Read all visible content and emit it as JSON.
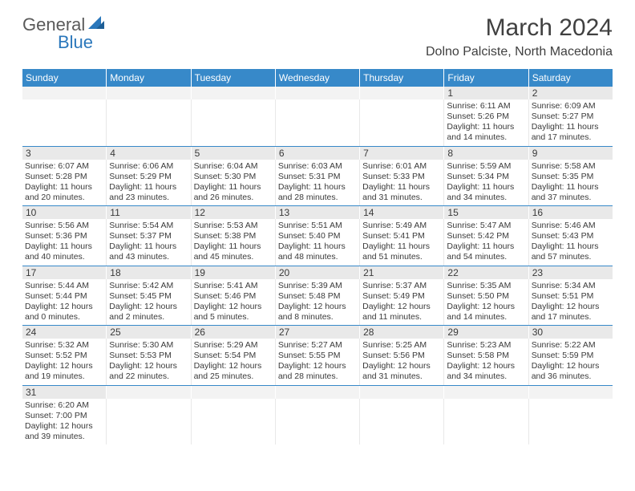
{
  "brand": {
    "g": "General",
    "b": "Blue"
  },
  "title": "March 2024",
  "location": "Dolno Palciste, North Macedonia",
  "colors": {
    "headerBar": "#3789c9",
    "bandBg": "#e9e9e9",
    "emptyBg": "#f3f3f3",
    "text": "#3a3a3a",
    "rowBorder": "#3789c9"
  },
  "dayNames": [
    "Sunday",
    "Monday",
    "Tuesday",
    "Wednesday",
    "Thursday",
    "Friday",
    "Saturday"
  ],
  "weeks": [
    [
      null,
      null,
      null,
      null,
      null,
      {
        "d": "1",
        "sr": "Sunrise: 6:11 AM",
        "ss": "Sunset: 5:26 PM",
        "dl1": "Daylight: 11 hours",
        "dl2": "and 14 minutes."
      },
      {
        "d": "2",
        "sr": "Sunrise: 6:09 AM",
        "ss": "Sunset: 5:27 PM",
        "dl1": "Daylight: 11 hours",
        "dl2": "and 17 minutes."
      }
    ],
    [
      {
        "d": "3",
        "sr": "Sunrise: 6:07 AM",
        "ss": "Sunset: 5:28 PM",
        "dl1": "Daylight: 11 hours",
        "dl2": "and 20 minutes."
      },
      {
        "d": "4",
        "sr": "Sunrise: 6:06 AM",
        "ss": "Sunset: 5:29 PM",
        "dl1": "Daylight: 11 hours",
        "dl2": "and 23 minutes."
      },
      {
        "d": "5",
        "sr": "Sunrise: 6:04 AM",
        "ss": "Sunset: 5:30 PM",
        "dl1": "Daylight: 11 hours",
        "dl2": "and 26 minutes."
      },
      {
        "d": "6",
        "sr": "Sunrise: 6:03 AM",
        "ss": "Sunset: 5:31 PM",
        "dl1": "Daylight: 11 hours",
        "dl2": "and 28 minutes."
      },
      {
        "d": "7",
        "sr": "Sunrise: 6:01 AM",
        "ss": "Sunset: 5:33 PM",
        "dl1": "Daylight: 11 hours",
        "dl2": "and 31 minutes."
      },
      {
        "d": "8",
        "sr": "Sunrise: 5:59 AM",
        "ss": "Sunset: 5:34 PM",
        "dl1": "Daylight: 11 hours",
        "dl2": "and 34 minutes."
      },
      {
        "d": "9",
        "sr": "Sunrise: 5:58 AM",
        "ss": "Sunset: 5:35 PM",
        "dl1": "Daylight: 11 hours",
        "dl2": "and 37 minutes."
      }
    ],
    [
      {
        "d": "10",
        "sr": "Sunrise: 5:56 AM",
        "ss": "Sunset: 5:36 PM",
        "dl1": "Daylight: 11 hours",
        "dl2": "and 40 minutes."
      },
      {
        "d": "11",
        "sr": "Sunrise: 5:54 AM",
        "ss": "Sunset: 5:37 PM",
        "dl1": "Daylight: 11 hours",
        "dl2": "and 43 minutes."
      },
      {
        "d": "12",
        "sr": "Sunrise: 5:53 AM",
        "ss": "Sunset: 5:38 PM",
        "dl1": "Daylight: 11 hours",
        "dl2": "and 45 minutes."
      },
      {
        "d": "13",
        "sr": "Sunrise: 5:51 AM",
        "ss": "Sunset: 5:40 PM",
        "dl1": "Daylight: 11 hours",
        "dl2": "and 48 minutes."
      },
      {
        "d": "14",
        "sr": "Sunrise: 5:49 AM",
        "ss": "Sunset: 5:41 PM",
        "dl1": "Daylight: 11 hours",
        "dl2": "and 51 minutes."
      },
      {
        "d": "15",
        "sr": "Sunrise: 5:47 AM",
        "ss": "Sunset: 5:42 PM",
        "dl1": "Daylight: 11 hours",
        "dl2": "and 54 minutes."
      },
      {
        "d": "16",
        "sr": "Sunrise: 5:46 AM",
        "ss": "Sunset: 5:43 PM",
        "dl1": "Daylight: 11 hours",
        "dl2": "and 57 minutes."
      }
    ],
    [
      {
        "d": "17",
        "sr": "Sunrise: 5:44 AM",
        "ss": "Sunset: 5:44 PM",
        "dl1": "Daylight: 12 hours",
        "dl2": "and 0 minutes."
      },
      {
        "d": "18",
        "sr": "Sunrise: 5:42 AM",
        "ss": "Sunset: 5:45 PM",
        "dl1": "Daylight: 12 hours",
        "dl2": "and 2 minutes."
      },
      {
        "d": "19",
        "sr": "Sunrise: 5:41 AM",
        "ss": "Sunset: 5:46 PM",
        "dl1": "Daylight: 12 hours",
        "dl2": "and 5 minutes."
      },
      {
        "d": "20",
        "sr": "Sunrise: 5:39 AM",
        "ss": "Sunset: 5:48 PM",
        "dl1": "Daylight: 12 hours",
        "dl2": "and 8 minutes."
      },
      {
        "d": "21",
        "sr": "Sunrise: 5:37 AM",
        "ss": "Sunset: 5:49 PM",
        "dl1": "Daylight: 12 hours",
        "dl2": "and 11 minutes."
      },
      {
        "d": "22",
        "sr": "Sunrise: 5:35 AM",
        "ss": "Sunset: 5:50 PM",
        "dl1": "Daylight: 12 hours",
        "dl2": "and 14 minutes."
      },
      {
        "d": "23",
        "sr": "Sunrise: 5:34 AM",
        "ss": "Sunset: 5:51 PM",
        "dl1": "Daylight: 12 hours",
        "dl2": "and 17 minutes."
      }
    ],
    [
      {
        "d": "24",
        "sr": "Sunrise: 5:32 AM",
        "ss": "Sunset: 5:52 PM",
        "dl1": "Daylight: 12 hours",
        "dl2": "and 19 minutes."
      },
      {
        "d": "25",
        "sr": "Sunrise: 5:30 AM",
        "ss": "Sunset: 5:53 PM",
        "dl1": "Daylight: 12 hours",
        "dl2": "and 22 minutes."
      },
      {
        "d": "26",
        "sr": "Sunrise: 5:29 AM",
        "ss": "Sunset: 5:54 PM",
        "dl1": "Daylight: 12 hours",
        "dl2": "and 25 minutes."
      },
      {
        "d": "27",
        "sr": "Sunrise: 5:27 AM",
        "ss": "Sunset: 5:55 PM",
        "dl1": "Daylight: 12 hours",
        "dl2": "and 28 minutes."
      },
      {
        "d": "28",
        "sr": "Sunrise: 5:25 AM",
        "ss": "Sunset: 5:56 PM",
        "dl1": "Daylight: 12 hours",
        "dl2": "and 31 minutes."
      },
      {
        "d": "29",
        "sr": "Sunrise: 5:23 AM",
        "ss": "Sunset: 5:58 PM",
        "dl1": "Daylight: 12 hours",
        "dl2": "and 34 minutes."
      },
      {
        "d": "30",
        "sr": "Sunrise: 5:22 AM",
        "ss": "Sunset: 5:59 PM",
        "dl1": "Daylight: 12 hours",
        "dl2": "and 36 minutes."
      }
    ],
    [
      {
        "d": "31",
        "sr": "Sunrise: 6:20 AM",
        "ss": "Sunset: 7:00 PM",
        "dl1": "Daylight: 12 hours",
        "dl2": "and 39 minutes."
      },
      null,
      null,
      null,
      null,
      null,
      null
    ]
  ]
}
